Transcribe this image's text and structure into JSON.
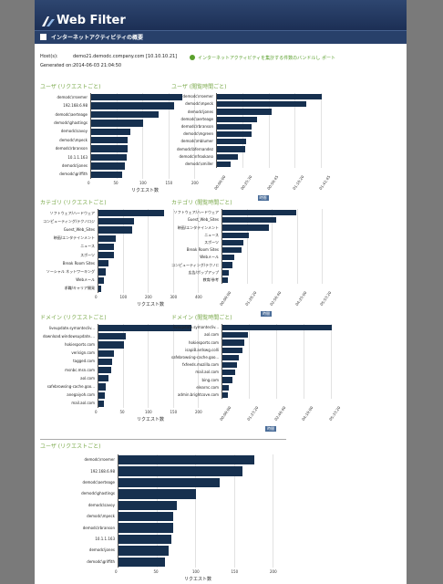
{
  "header": {
    "app_title": "Web Filter",
    "logo": "websense-arrow-logo"
  },
  "subheader": {
    "title": "インターネットアクティビティの概要",
    "icon": "report-icon"
  },
  "meta": [
    {
      "label": "Host(s):",
      "value": "demo21.demodc.company.com [10.10.10.21]"
    },
    {
      "label": "Generated on:",
      "value": "2014-06-03 21:04:50"
    }
  ],
  "notice": {
    "icon": "info-icon",
    "text": "インターネットアクティビティを集計する件数のバンドルし ポート"
  },
  "colors": {
    "bar": "#16304f",
    "title": "#7aa94a",
    "header": "#1c2f55"
  },
  "charts": [
    {
      "id": "c1",
      "type": "bar",
      "title": "ユーザ (リクエストごと)",
      "categories": [
        "demodc\\rroemer",
        "192.168.6.98",
        "demodc\\aerteage",
        "demodc\\ghastings",
        "demodc\\savoy",
        "demodc\\mpeck",
        "demodc\\rbranson",
        "10.1.1.163",
        "demodc\\jones",
        "demodc\\griffith"
      ],
      "values": [
        175,
        160,
        130,
        100,
        75,
        70,
        70,
        68,
        65,
        60
      ],
      "ticks": [
        "0",
        "50",
        "100",
        "150",
        "200"
      ],
      "max": 200,
      "xlabel": "リクエスト数"
    },
    {
      "id": "c2",
      "type": "bar",
      "title": "ユーザ (閲覧時間ごと)",
      "categories": [
        "demodc\\rroemer",
        "demodc\\mpeck",
        "demodc\\jones",
        "demodc\\aerteage",
        "demodc\\rbranson",
        "demodc\\mgreen",
        "demodc\\mblumer",
        "demodc\\bfernandez",
        "demodc\\nfrookano",
        "demodc\\smiller"
      ],
      "values": [
        100,
        85,
        52,
        38,
        33,
        33,
        28,
        27,
        20,
        13
      ],
      "ticks": [
        "00:00:00",
        "00:25:30",
        "00:50:45",
        "01:16:20",
        "01:41:45"
      ],
      "max": 100,
      "xlabel": "時間"
    },
    {
      "id": "c3",
      "type": "bar",
      "title": "カテゴリ (リクエストごと)",
      "categories": [
        "ソフトウェア/ハードウェア",
        "コンピューティング/テクノロジ",
        "Guest_Web_Sites",
        "映画/エンタテインメント",
        "ニュース",
        "スポーツ",
        "Break Room Sites",
        "ソーシャル ネットワーキング",
        "Webメール",
        "求職/キャリア開発"
      ],
      "values": [
        260,
        140,
        135,
        70,
        60,
        60,
        40,
        30,
        20,
        10
      ],
      "ticks": [
        "0",
        "100",
        "200",
        "300",
        "400"
      ],
      "max": 400,
      "xlabel": "リクエスト数"
    },
    {
      "id": "c4",
      "type": "bar",
      "title": "カテゴリ (閲覧時間ごと)",
      "categories": [
        "ソフトウェア/ハードウェア",
        "Guest_Web_Sites",
        "映画/エンタテインメント",
        "ニュース",
        "スポーツ",
        "Break Room Sites",
        "Webメール",
        "コンピューティング/テクノロジ",
        "広告/ポップアップ",
        "教育/参考"
      ],
      "values": [
        110,
        80,
        70,
        40,
        32,
        28,
        18,
        15,
        10,
        8
      ],
      "ticks": [
        "00:00:00",
        "01:28:20",
        "02:56:40",
        "04:25:00",
        "05:53:20"
      ],
      "max": 150,
      "xlabel": "時間"
    },
    {
      "id": "c5",
      "type": "bar",
      "title": "ドメイン (リクエストごと)",
      "categories": [
        "liveupdate.symantecliv...",
        "download.windowsupdate....",
        "hokiesports.com",
        "verisign.com",
        "tagged.com",
        "msnbc.msn.com",
        "aol.com",
        "safebrowsing-cache.goo...",
        "anegaiyoh.com",
        "mail.aol.com"
      ],
      "values": [
        185,
        55,
        50,
        30,
        28,
        25,
        20,
        15,
        12,
        10
      ],
      "ticks": [
        "0",
        "50",
        "100",
        "150",
        "200"
      ],
      "max": 200,
      "xlabel": "リクエスト数"
    },
    {
      "id": "c6",
      "type": "bar",
      "title": "ドメイン (閲覧時間ごと)",
      "categories": [
        "liveupdate.symantecliv...",
        "aol.com",
        "hokiesports.com",
        "isapi8.ardswg.colli",
        "safebrowsing-cache.goo...",
        "fxfeeds.mozilla.com",
        "mail.aol.com",
        "bing.com",
        "elearnc.com",
        "admin.brightcove.com"
      ],
      "values": [
        100,
        23,
        20,
        18,
        15,
        13,
        12,
        9,
        6,
        5
      ],
      "ticks": [
        "00:00:00",
        "01:23:20",
        "02:46:40",
        "04:10:00",
        "05:33:20"
      ],
      "max": 100,
      "xlabel": "時間"
    },
    {
      "id": "c7",
      "type": "bar",
      "title": "ユーザ (リクエストごと)",
      "categories": [
        "demodc\\rroemer",
        "192.168.6.98",
        "demodc\\aerteage",
        "demodc\\ghastings",
        "demodc\\savoy",
        "demodc\\mpeck",
        "demodc\\rbranson",
        "10.1.1.163",
        "demodc\\jones",
        "demodc\\griffith"
      ],
      "values": [
        175,
        160,
        130,
        100,
        75,
        70,
        70,
        68,
        65,
        60
      ],
      "ticks": [
        "0",
        "50",
        "100",
        "150",
        "200"
      ],
      "max": 200,
      "xlabel": "リクエスト数"
    }
  ]
}
